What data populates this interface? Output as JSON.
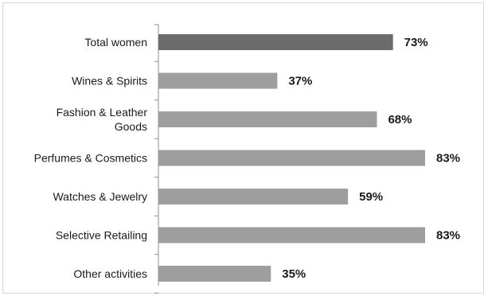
{
  "chart_data": {
    "type": "bar",
    "orientation": "horizontal",
    "categories": [
      [
        "Total women"
      ],
      [
        "Wines & Spirits"
      ],
      [
        "Fashion & Leather",
        "Goods"
      ],
      [
        "Perfumes & Cosmetics"
      ],
      [
        "Watches & Jewelry"
      ],
      [
        "Selective Retailing"
      ],
      [
        "Other activities"
      ]
    ],
    "values": [
      73,
      37,
      68,
      83,
      59,
      83,
      35
    ],
    "data_labels": [
      "73%",
      "37%",
      "68%",
      "83%",
      "59%",
      "83%",
      "35%"
    ],
    "value_unit": "%",
    "xlim": [
      0,
      100
    ],
    "grid": false,
    "legend": "none",
    "colors": {
      "highlight": "#6b6b6b",
      "bar": "#9e9e9e",
      "axis": "#8c8c8c",
      "text": "#1a1a1a"
    },
    "highlight_index": 0
  }
}
